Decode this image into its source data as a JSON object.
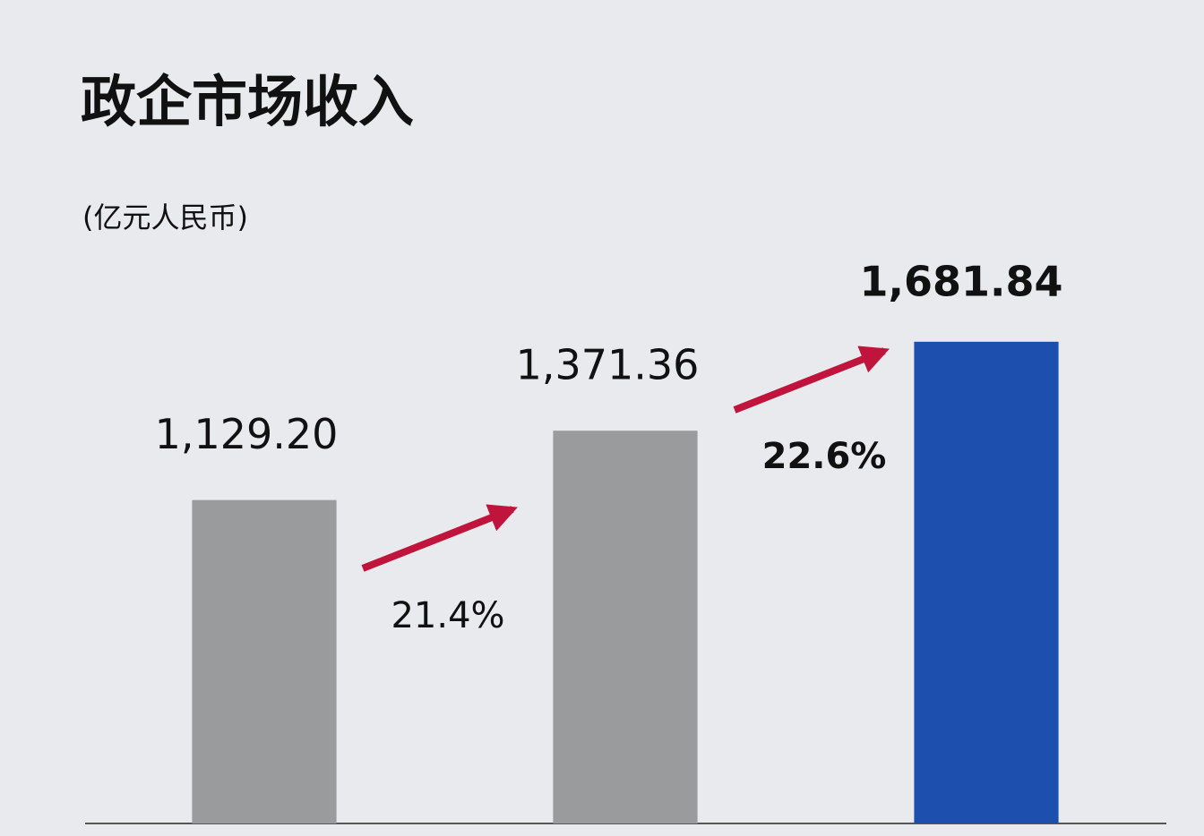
{
  "chart_data": {
    "type": "bar",
    "title": "政企市场收入",
    "subtitle": "(亿元人民币)",
    "categories": [
      null,
      null,
      null
    ],
    "values": [
      1129.2,
      1371.36,
      1681.84
    ],
    "value_labels": [
      "1,129.20",
      "1,371.36",
      "1,681.84"
    ],
    "colors": [
      "#9a9b9d",
      "#9a9b9d",
      "#1c4fae"
    ],
    "ylim": [
      0,
      2000
    ],
    "annotations": [
      "21.4%",
      "22.6%"
    ]
  }
}
